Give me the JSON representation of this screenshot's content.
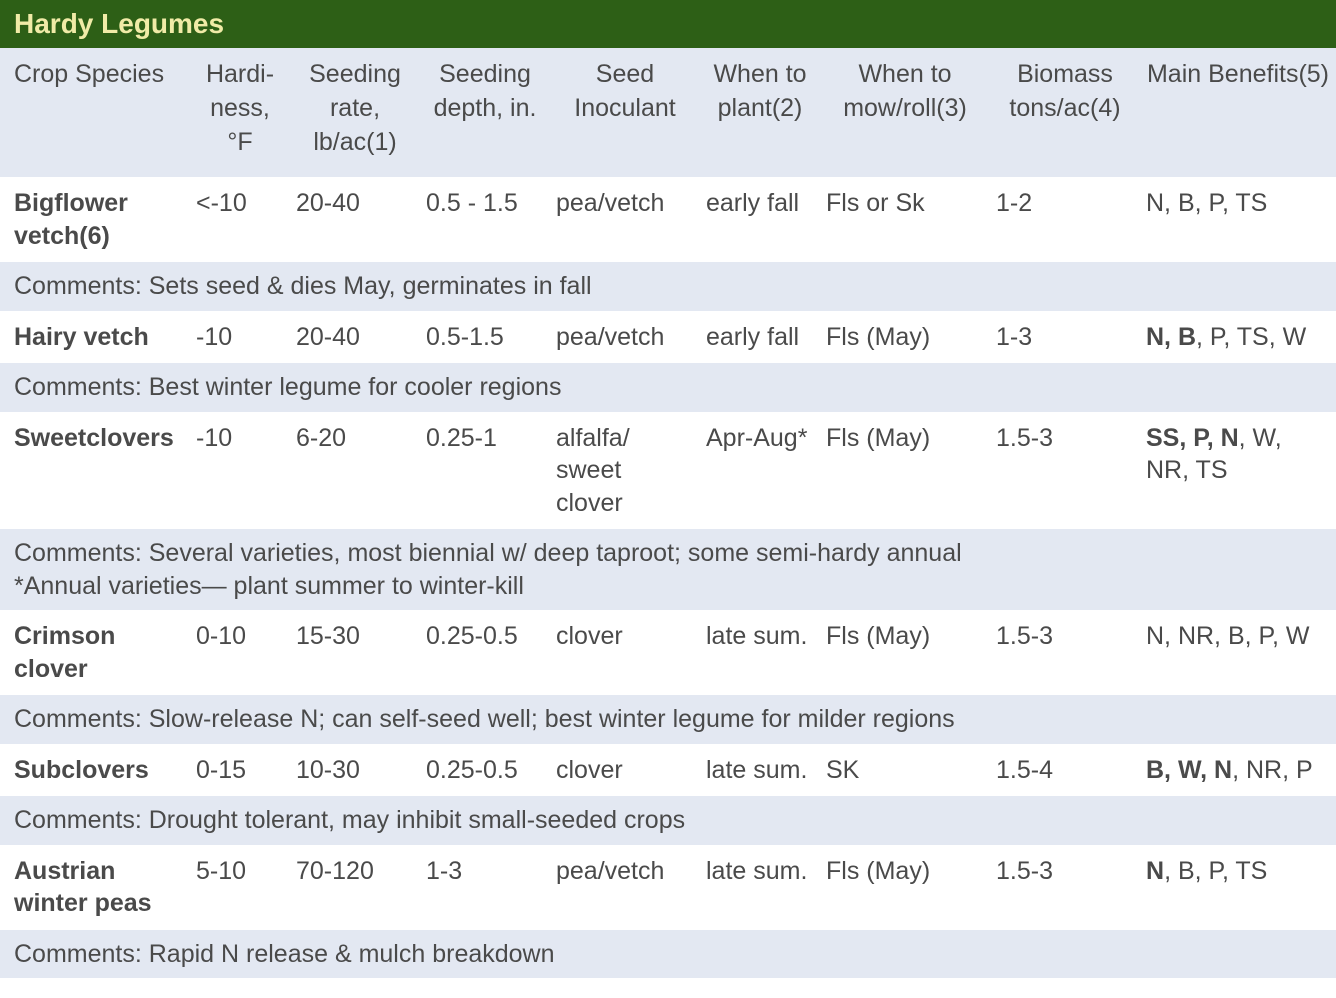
{
  "title": "Hardy Legumes",
  "colors": {
    "title_bg": "#2d5f16",
    "title_text": "#f0eba7",
    "header_bg": "#e3e8f2",
    "comment_bg": "#e3e8f2",
    "row_bg": "#ffffff",
    "text": "#4a4a4a"
  },
  "columns": [
    "Crop Species",
    "Hardi-ness, °F",
    "Seeding rate, lb/ac(1)",
    "Seeding depth, in.",
    "Seed Inoculant",
    "When to plant(2)",
    "When to mow/roll(3)",
    "Biomass tons/ac(4)",
    "Main Benefits(5)"
  ],
  "rows": [
    {
      "species": "Bigflower vetch(6)",
      "hardiness": "<-10",
      "seeding_rate": "20-40",
      "seeding_depth": "0.5 - 1.5",
      "inoculant": "pea/vetch",
      "when_plant": "early fall",
      "when_mow": "Fls or Sk",
      "biomass": "1-2",
      "benefits_bold": "",
      "benefits_rest": "N, B, P, TS",
      "comment": "Comments: Sets seed & dies May, germinates in fall"
    },
    {
      "species": "Hairy vetch",
      "hardiness": "-10",
      "seeding_rate": "20-40",
      "seeding_depth": "0.5-1.5",
      "inoculant": "pea/vetch",
      "when_plant": "early fall",
      "when_mow": "Fls (May)",
      "biomass": "1-3",
      "benefits_bold": "N, B",
      "benefits_rest": ", P, TS, W",
      "comment": "Comments: Best winter legume for cooler regions"
    },
    {
      "species": "Sweetclovers",
      "hardiness": "-10",
      "seeding_rate": "6-20",
      "seeding_depth": "0.25-1",
      "inoculant": "alfalfa/ sweet clover",
      "when_plant": "Apr-Aug*",
      "when_mow": "Fls (May)",
      "biomass": "1.5-3",
      "benefits_bold": "SS, P, N",
      "benefits_rest": ", W, NR, TS",
      "comment": "Comments: Several varieties, most biennial w/ deep taproot; some semi-hardy annual\n*Annual varieties— plant summer to winter-kill"
    },
    {
      "species": "Crimson clover",
      "hardiness": "0-10",
      "seeding_rate": "15-30",
      "seeding_depth": "0.25-0.5",
      "inoculant": "clover",
      "when_plant": "late sum.",
      "when_mow": "Fls (May)",
      "biomass": "1.5-3",
      "benefits_bold": "",
      "benefits_rest": "N, NR, B, P, W",
      "comment": "Comments: Slow-release N; can self-seed well; best winter legume for milder regions"
    },
    {
      "species": "Subclovers",
      "hardiness": "0-15",
      "seeding_rate": "10-30",
      "seeding_depth": "0.25-0.5",
      "inoculant": "clover",
      "when_plant": "late sum.",
      "when_mow": "SK",
      "biomass": "1.5-4",
      "benefits_bold": "B, W, N",
      "benefits_rest": ", NR, P",
      "comment": "Comments: Drought tolerant, may inhibit small-seeded crops"
    },
    {
      "species": "Austrian winter peas",
      "hardiness": "5-10",
      "seeding_rate": "70-120",
      "seeding_depth": "1-3",
      "inoculant": "pea/vetch",
      "when_plant": "late sum.",
      "when_mow": "Fls (May)",
      "biomass": "1.5-3",
      "benefits_bold": "N",
      "benefits_rest": ", B, P, TS",
      "comment": "Comments: Rapid N release & mulch breakdown"
    }
  ]
}
